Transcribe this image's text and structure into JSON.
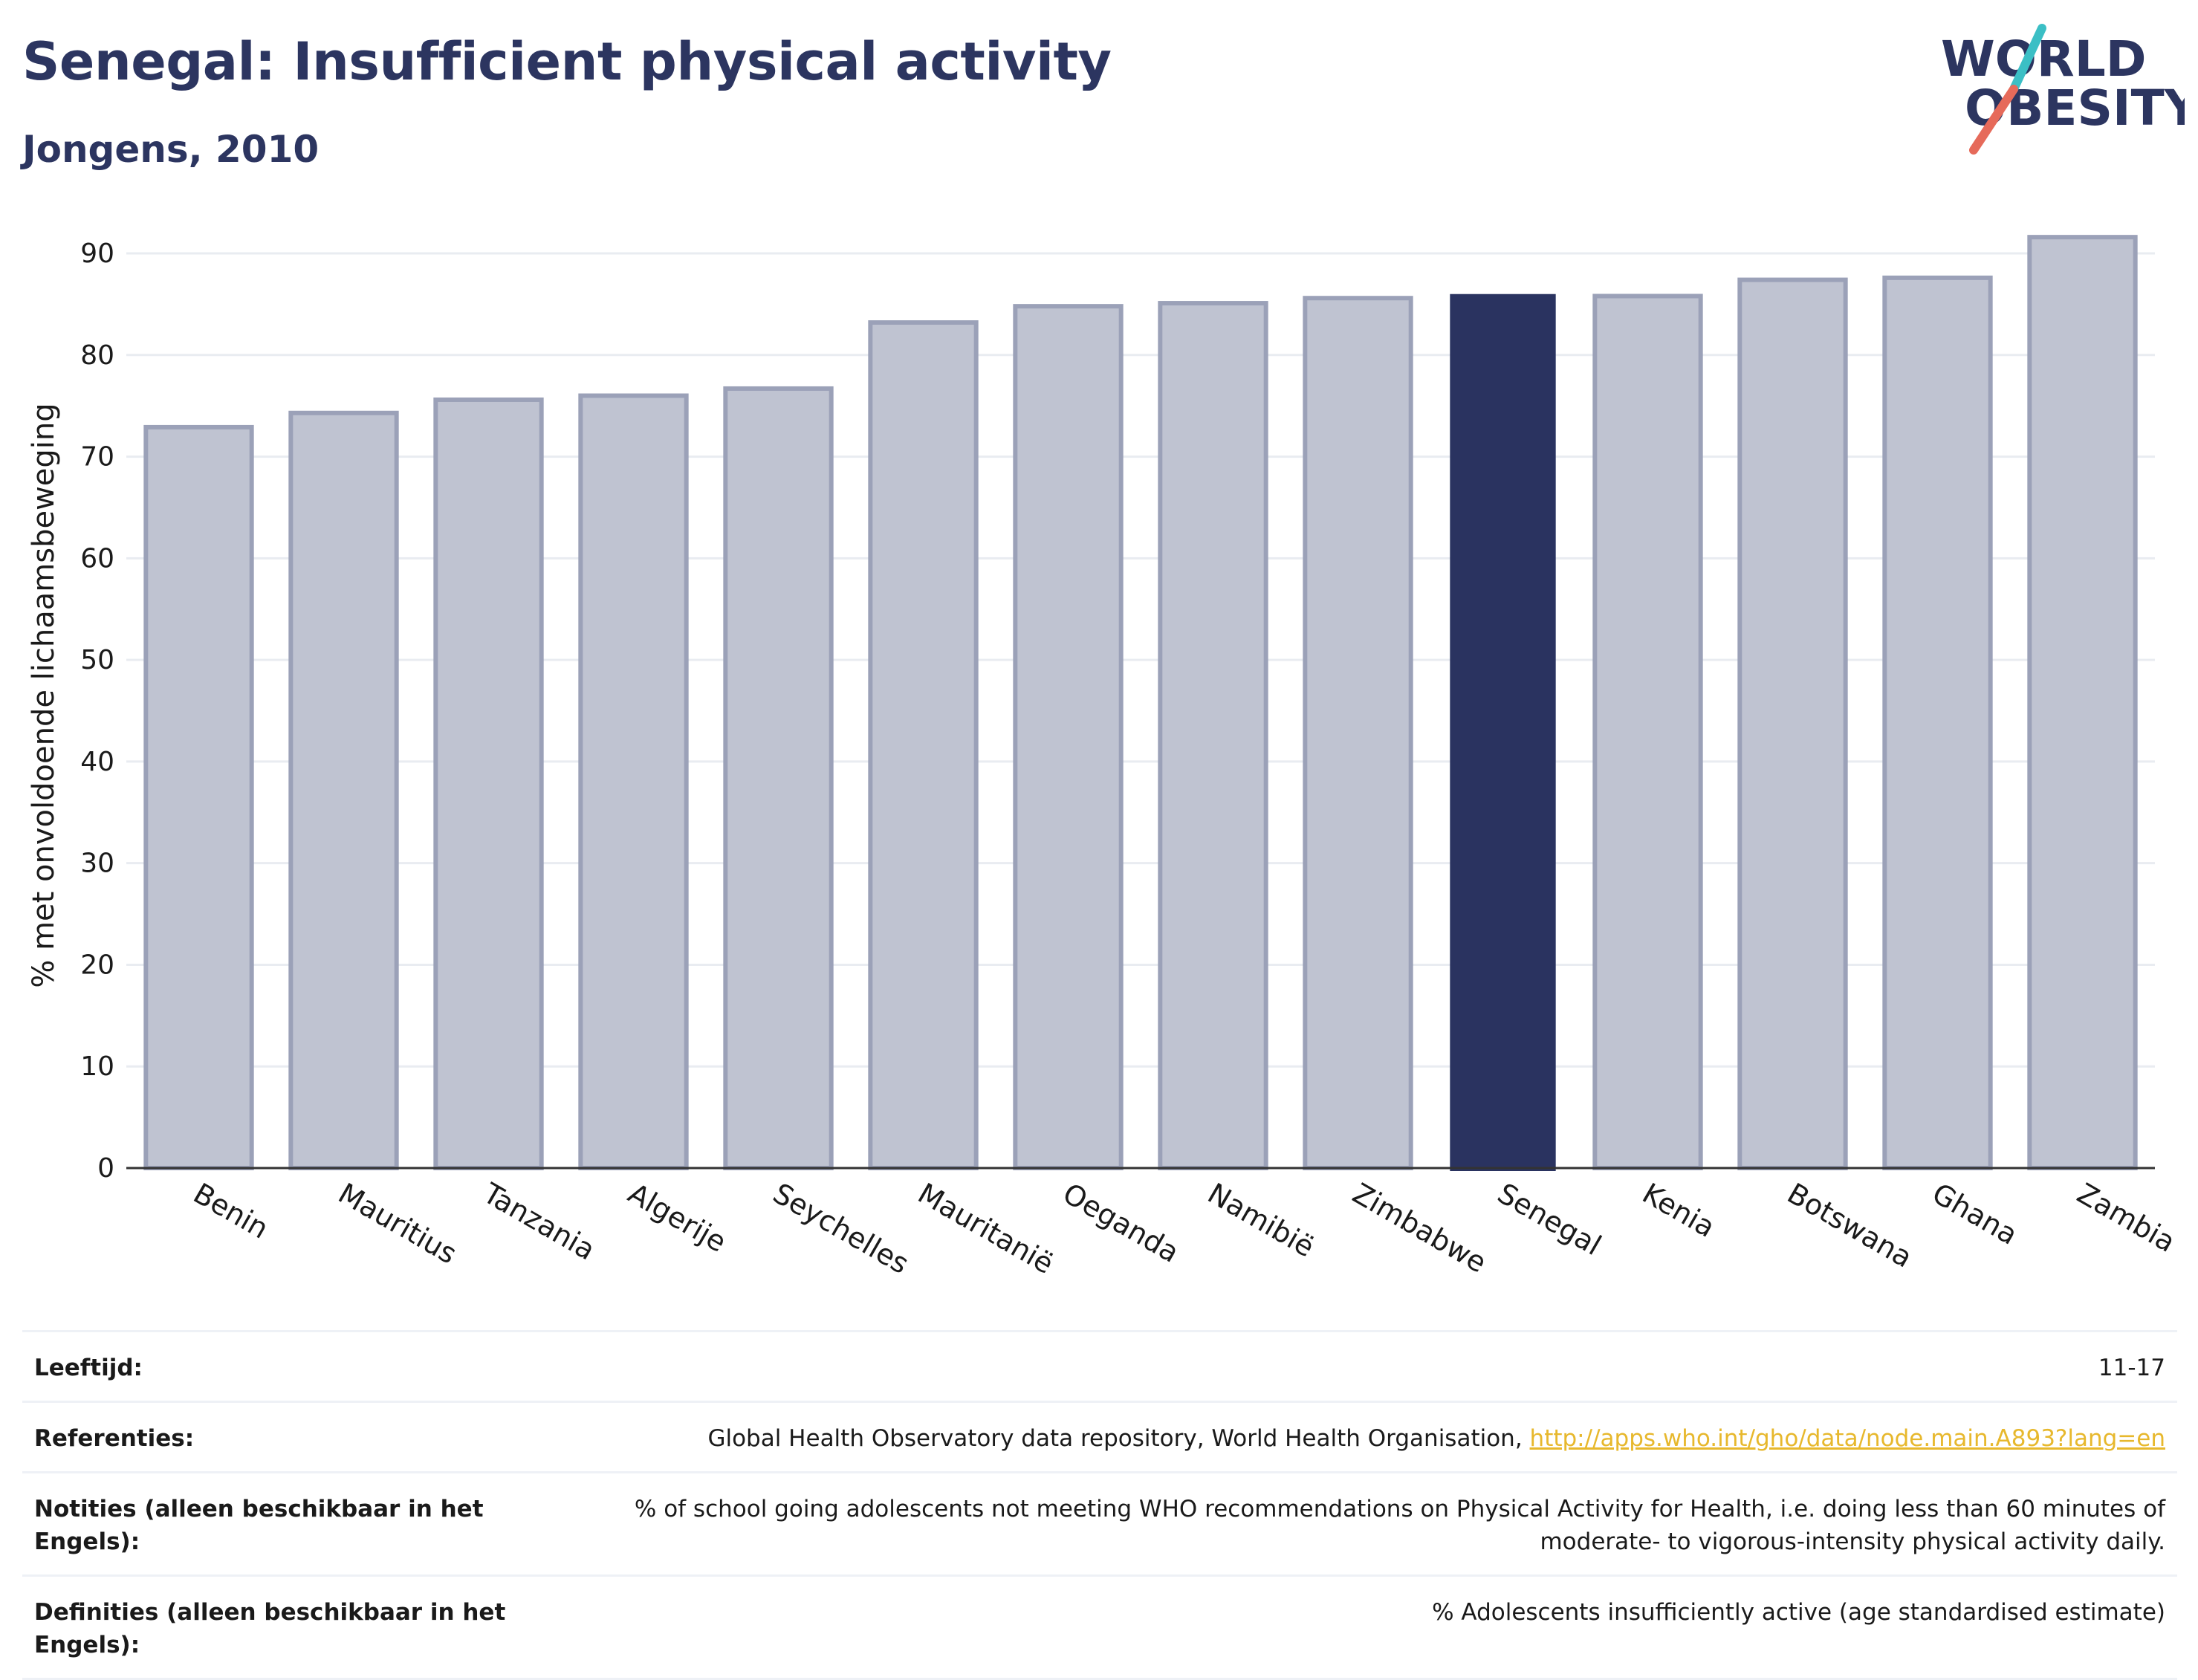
{
  "header": {
    "title": "Senegal: Insufficient physical activity",
    "subtitle": "Jongens, 2010",
    "logo_line1": "WORLD",
    "logo_line2": "OBESITY"
  },
  "colors": {
    "highlight": "#2a3360",
    "bar_fill": "#bfc3d1",
    "bar_stroke": "#9ba1b8",
    "text_dark": "#2c3560",
    "logo_teal": "#3bbfc5",
    "logo_coral": "#e66a5a",
    "link": "#e7b82d"
  },
  "chart_data": {
    "type": "bar",
    "categories": [
      "Benin",
      "Mauritius",
      "Tanzania",
      "Algerije",
      "Seychelles",
      "Mauritanië",
      "Oeganda",
      "Namibië",
      "Zimbabwe",
      "Senegal",
      "Kenia",
      "Botswana",
      "Ghana",
      "Zambia"
    ],
    "values": [
      72.9,
      74.3,
      75.6,
      76.0,
      76.7,
      83.2,
      84.8,
      85.1,
      85.6,
      86.0,
      85.8,
      87.4,
      87.6,
      91.6
    ],
    "highlight": "Senegal",
    "ylabel": "% met onvoldoende lichaamsbeweging",
    "xlabel": "",
    "ylim": [
      0,
      93
    ],
    "yticks": [
      0,
      10,
      20,
      30,
      40,
      50,
      60,
      70,
      80,
      90
    ],
    "grid": true
  },
  "footer": {
    "age_label": "Leeftijd:",
    "age_value": "11-17",
    "ref_label": "Referenties:",
    "ref_text": "Global Health Observatory data repository, World Health Organisation, ",
    "ref_link": "http://apps.who.int/gho/data/node.main.A893?lang=en",
    "notes_label": "Notities (alleen beschikbaar in het Engels):",
    "notes_value": "% of school going adolescents not meeting WHO recommendations on Physical Activity for Health, i.e. doing less than 60 minutes of moderate- to vigorous-intensity physical activity daily.",
    "def_label": "Definities (alleen beschikbaar in het Engels):",
    "def_value": "% Adolescents insufficiently active (age standardised estimate)"
  }
}
